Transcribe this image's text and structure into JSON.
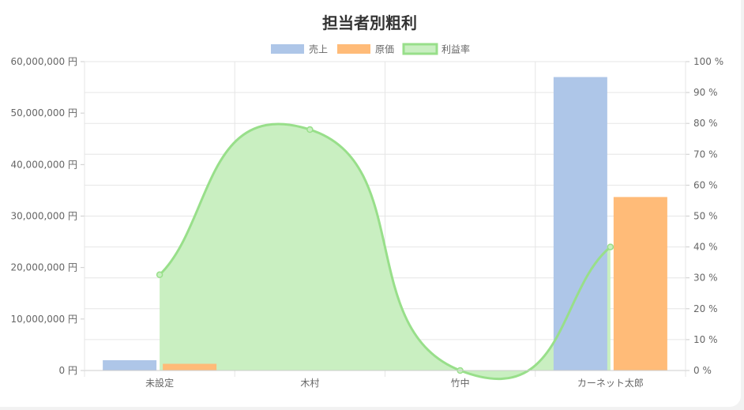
{
  "chart_data": {
    "type": "bar",
    "title": "担当者別粗利",
    "categories": [
      "未設定",
      "木村",
      "竹中",
      "カーネット太郎"
    ],
    "series": [
      {
        "name": "売上",
        "type": "bar",
        "axis": "left",
        "values": [
          2000000,
          0,
          0,
          57000000
        ],
        "color": "#aec6e8"
      },
      {
        "name": "原価",
        "type": "bar",
        "axis": "left",
        "values": [
          1300000,
          0,
          0,
          33700000
        ],
        "color": "#ffbb78"
      },
      {
        "name": "利益率",
        "type": "area",
        "axis": "right",
        "values": [
          31,
          78,
          0,
          40
        ],
        "color": "#98df8a",
        "fill": "#c9efc1"
      }
    ],
    "y_left": {
      "range": [
        0,
        60000000
      ],
      "ticks": [
        "0 円",
        "10,000,000 円",
        "20,000,000 円",
        "30,000,000 円",
        "40,000,000 円",
        "50,000,000 円",
        "60,000,000 円"
      ]
    },
    "y_right": {
      "range": [
        0,
        100
      ],
      "ticks": [
        "0 %",
        "10 %",
        "20 %",
        "30 %",
        "40 %",
        "50 %",
        "60 %",
        "70 %",
        "80 %",
        "90 %",
        "100 %"
      ]
    },
    "legend_position": "top-center",
    "grid": true
  }
}
